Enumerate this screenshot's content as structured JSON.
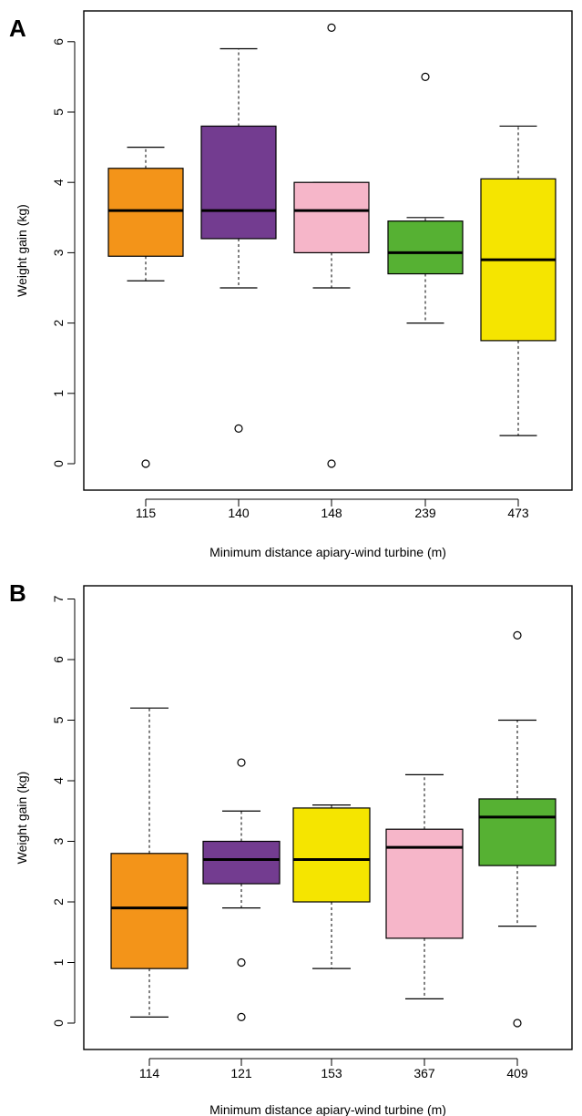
{
  "chart_data": [
    {
      "type": "box",
      "panel_label": "A",
      "xlabel": "Minimum distance apiary-wind turbine (m)",
      "ylabel": "Weight gain (kg)",
      "ylim": [
        0,
        6.2
      ],
      "yticks": [
        0,
        1,
        2,
        3,
        4,
        5,
        6
      ],
      "grid": false,
      "categories": [
        "115",
        "140",
        "148",
        "239",
        "473"
      ],
      "boxes": [
        {
          "category": "115",
          "color": "#F39419",
          "whisker_low": 2.6,
          "q1": 2.95,
          "median": 3.6,
          "q3": 4.2,
          "whisker_high": 4.5,
          "outliers": [
            0
          ]
        },
        {
          "category": "140",
          "color": "#733C90",
          "whisker_low": 2.5,
          "q1": 3.2,
          "median": 3.6,
          "q3": 4.8,
          "whisker_high": 5.9,
          "outliers": [
            0.5
          ]
        },
        {
          "category": "148",
          "color": "#F6B6C9",
          "whisker_low": 2.5,
          "q1": 3.0,
          "median": 3.6,
          "q3": 4.0,
          "whisker_high": 4.0,
          "outliers": [
            0,
            6.2
          ]
        },
        {
          "category": "239",
          "color": "#56B133",
          "whisker_low": 2.0,
          "q1": 2.7,
          "median": 3.0,
          "q3": 3.45,
          "whisker_high": 3.5,
          "outliers": [
            5.5
          ]
        },
        {
          "category": "473",
          "color": "#F5E500",
          "whisker_low": 0.4,
          "q1": 1.75,
          "median": 2.9,
          "q3": 4.05,
          "whisker_high": 4.8,
          "outliers": []
        }
      ]
    },
    {
      "type": "box",
      "panel_label": "B",
      "xlabel": "Minimum distance apiary-wind turbine (m)",
      "ylabel": "Weight gain (kg)",
      "ylim": [
        0,
        7
      ],
      "yticks": [
        0,
        1,
        2,
        3,
        4,
        5,
        6,
        7
      ],
      "grid": false,
      "categories": [
        "114",
        "121",
        "153",
        "367",
        "409"
      ],
      "boxes": [
        {
          "category": "114",
          "color": "#F39419",
          "whisker_low": 0.1,
          "q1": 0.9,
          "median": 1.9,
          "q3": 2.8,
          "whisker_high": 5.2,
          "outliers": []
        },
        {
          "category": "121",
          "color": "#733C90",
          "whisker_low": 1.9,
          "q1": 2.3,
          "median": 2.7,
          "q3": 3.0,
          "whisker_high": 3.5,
          "outliers": [
            0.1,
            1.0,
            4.3
          ]
        },
        {
          "category": "153",
          "color": "#F5E500",
          "whisker_low": 0.9,
          "q1": 2.0,
          "median": 2.7,
          "q3": 3.55,
          "whisker_high": 3.6,
          "outliers": []
        },
        {
          "category": "367",
          "color": "#F6B6C9",
          "whisker_low": 0.4,
          "q1": 1.4,
          "median": 2.9,
          "q3": 3.2,
          "whisker_high": 4.1,
          "outliers": []
        },
        {
          "category": "409",
          "color": "#56B133",
          "whisker_low": 1.6,
          "q1": 2.6,
          "median": 3.4,
          "q3": 3.7,
          "whisker_high": 5.0,
          "outliers": [
            0,
            6.4
          ]
        }
      ]
    }
  ]
}
